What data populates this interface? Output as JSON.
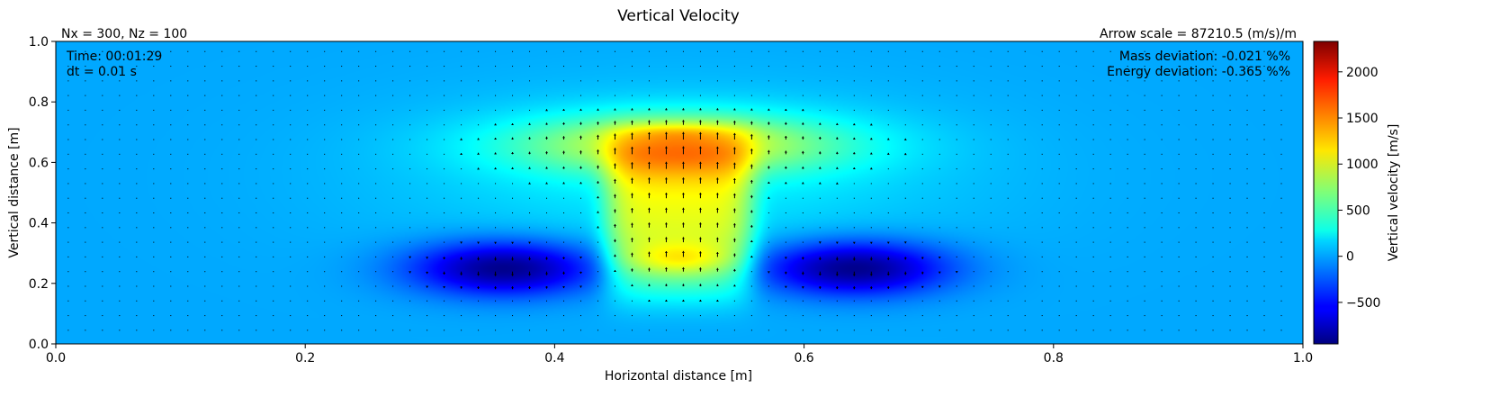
{
  "chart_data": {
    "type": "heatmap",
    "title": "Vertical Velocity",
    "xlabel": "Horizontal distance [m]",
    "ylabel": "Vertical distance [m]",
    "xlim": [
      0.0,
      1.0
    ],
    "ylim": [
      0.0,
      1.0
    ],
    "x_ticks": [
      "0.0",
      "0.2",
      "0.4",
      "0.6",
      "0.8",
      "1.0"
    ],
    "y_ticks": [
      "0.0",
      "0.2",
      "0.4",
      "0.6",
      "0.8",
      "1.0"
    ],
    "colorbar": {
      "label": "Vertical velocity [m/s]",
      "range": [
        -950,
        2330
      ],
      "ticks": [
        "−500",
        "0",
        "500",
        "1000",
        "1500",
        "2000"
      ],
      "colormap": "jet"
    },
    "grid_info": "Nx = 300, Nz = 100",
    "arrow_scale": "Arrow scale = 87210.5 (m/s)/m",
    "time": "Time: 00:01:29",
    "dt": "dt = 0.01 s",
    "mass_deviation": "Mass deviation: -0.021 %%",
    "energy_deviation": "Energy deviation: -0.365 %%",
    "features": [
      {
        "kind": "updraft-cap",
        "x": 0.5,
        "y": 0.7,
        "value": 1350
      },
      {
        "kind": "updraft-core",
        "x": 0.5,
        "y": 0.28,
        "value": 1300
      },
      {
        "kind": "downdraft",
        "x": 0.36,
        "y": 0.25,
        "value": -950
      },
      {
        "kind": "downdraft",
        "x": 0.64,
        "y": 0.25,
        "value": -950
      }
    ]
  }
}
